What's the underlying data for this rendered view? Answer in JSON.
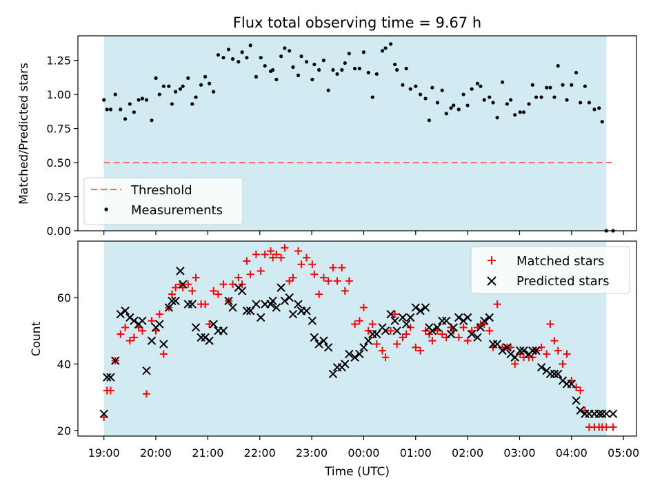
{
  "colors": {
    "band": "#add8e6",
    "threshold": "#ff6b6b",
    "matched": "#ff0000",
    "predicted": "#000000",
    "measurement": "#000000"
  },
  "chart_data": [
    {
      "type": "scatter",
      "title": "Flux total observing time = 9.67 h",
      "xlabel": "",
      "ylabel": "Matched/Predicted stars",
      "xlim": [
        -0.5,
        10.25
      ],
      "ylim": [
        0.0,
        1.43
      ],
      "yticks": [
        0.0,
        0.25,
        0.5,
        0.75,
        1.0
      ],
      "ytick_labels": [
        "0.00",
        "0.25",
        "0.50",
        "0.75",
        "1.00"
      ],
      "yticks_extra": [
        1.25
      ],
      "ytick_labels_extra": [
        "1.25"
      ],
      "observing_band": [
        0.0,
        9.67
      ],
      "threshold": 0.5,
      "threshold_x": [
        0.0,
        9.8
      ],
      "legend": {
        "threshold": "Threshold",
        "measurements": "Measurements",
        "placement": "lower-left"
      },
      "series": [
        {
          "name": "Measurements",
          "x": [
            0.0,
            0.06,
            0.13,
            0.22,
            0.32,
            0.41,
            0.5,
            0.58,
            0.67,
            0.74,
            0.82,
            0.92,
            1.0,
            1.07,
            1.15,
            1.25,
            1.31,
            1.38,
            1.47,
            1.52,
            1.62,
            1.7,
            1.77,
            1.87,
            1.95,
            2.03,
            2.11,
            2.2,
            2.3,
            2.4,
            2.48,
            2.59,
            2.66,
            2.75,
            2.82,
            2.93,
            3.02,
            3.1,
            3.21,
            3.25,
            3.32,
            3.41,
            3.48,
            3.57,
            3.64,
            3.74,
            3.8,
            3.9,
            4.01,
            4.05,
            4.14,
            4.23,
            4.32,
            4.41,
            4.49,
            4.58,
            4.64,
            4.72,
            4.83,
            4.92,
            5.0,
            5.09,
            5.17,
            5.25,
            5.36,
            5.42,
            5.52,
            5.6,
            5.64,
            5.75,
            5.82,
            5.9,
            6.0,
            6.09,
            6.19,
            6.26,
            6.32,
            6.42,
            6.51,
            6.59,
            6.68,
            6.73,
            6.83,
            6.92,
            7.0,
            7.08,
            7.19,
            7.25,
            7.32,
            7.42,
            7.49,
            7.57,
            7.67,
            7.76,
            7.83,
            7.91,
            8.01,
            8.08,
            8.18,
            8.25,
            8.32,
            8.42,
            8.52,
            8.59,
            8.67,
            8.74,
            8.83,
            8.91,
            9.0,
            9.09,
            9.17,
            9.26,
            9.34,
            9.44,
            9.53,
            9.59,
            9.67,
            9.8
          ],
          "y": [
            0.96,
            0.89,
            0.89,
            1.0,
            0.89,
            0.82,
            0.93,
            0.87,
            0.96,
            0.97,
            0.96,
            0.81,
            1.12,
            1.0,
            1.06,
            1.06,
            0.93,
            1.02,
            1.04,
            1.06,
            1.12,
            0.93,
            0.98,
            1.07,
            1.13,
            1.08,
            1.02,
            1.29,
            1.27,
            1.33,
            1.26,
            1.24,
            1.31,
            1.27,
            1.36,
            1.13,
            1.27,
            1.21,
            1.17,
            1.18,
            1.11,
            1.28,
            1.34,
            1.32,
            1.2,
            1.14,
            1.28,
            1.24,
            1.11,
            1.22,
            1.18,
            1.25,
            1.03,
            1.18,
            1.15,
            1.18,
            1.23,
            1.3,
            1.19,
            1.19,
            1.31,
            1.16,
            0.98,
            1.15,
            1.32,
            1.34,
            1.37,
            1.22,
            1.18,
            1.07,
            1.19,
            1.04,
            1.06,
            1.0,
            0.97,
            0.81,
            1.05,
            0.94,
            1.03,
            0.86,
            0.9,
            0.92,
            0.89,
            1.0,
            0.92,
            1.04,
            1.08,
            1.06,
            0.96,
            0.98,
            0.94,
            0.83,
            1.09,
            0.93,
            0.96,
            0.85,
            0.87,
            0.87,
            0.93,
            1.07,
            0.98,
            0.98,
            1.05,
            1.05,
            0.98,
            1.21,
            1.07,
            0.96,
            1.07,
            1.16,
            0.94,
            1.06,
            0.94,
            0.89,
            0.9,
            0.8,
            0.0,
            0.0
          ]
        }
      ]
    },
    {
      "type": "scatter",
      "title": "",
      "xlabel": "Time (UTC)",
      "ylabel": "Count",
      "xlim": [
        -0.5,
        10.25
      ],
      "ylim": [
        18.3,
        77.0
      ],
      "yticks": [
        20,
        40,
        60
      ],
      "ytick_labels": [
        "20",
        "40",
        "60"
      ],
      "xticks": [
        0,
        1,
        2,
        3,
        4,
        5,
        6,
        7,
        8,
        9,
        10
      ],
      "xtick_labels": [
        "19:00",
        "20:00",
        "21:00",
        "22:00",
        "23:00",
        "00:00",
        "01:00",
        "02:00",
        "03:00",
        "04:00",
        "05:00"
      ],
      "observing_band": [
        0.0,
        9.67
      ],
      "legend": {
        "matched": "Matched stars",
        "predicted": "Predicted stars",
        "placement": "top-right"
      },
      "series": [
        {
          "name": "Matched stars",
          "marker": "plus",
          "x": [
            0.0,
            0.06,
            0.13,
            0.22,
            0.32,
            0.41,
            0.5,
            0.58,
            0.67,
            0.74,
            0.82,
            0.92,
            1.0,
            1.07,
            1.15,
            1.25,
            1.31,
            1.38,
            1.47,
            1.52,
            1.62,
            1.7,
            1.77,
            1.87,
            1.95,
            2.03,
            2.11,
            2.2,
            2.3,
            2.4,
            2.48,
            2.59,
            2.66,
            2.75,
            2.82,
            2.93,
            3.02,
            3.1,
            3.21,
            3.25,
            3.32,
            3.41,
            3.48,
            3.57,
            3.64,
            3.74,
            3.8,
            3.9,
            4.01,
            4.05,
            4.14,
            4.23,
            4.32,
            4.41,
            4.49,
            4.58,
            4.64,
            4.72,
            4.83,
            4.92,
            5.0,
            5.09,
            5.17,
            5.25,
            5.36,
            5.42,
            5.52,
            5.6,
            5.64,
            5.75,
            5.82,
            5.9,
            6.0,
            6.09,
            6.19,
            6.26,
            6.32,
            6.42,
            6.51,
            6.59,
            6.68,
            6.73,
            6.83,
            6.92,
            7.0,
            7.08,
            7.19,
            7.25,
            7.32,
            7.42,
            7.49,
            7.57,
            7.67,
            7.76,
            7.83,
            7.91,
            8.01,
            8.08,
            8.18,
            8.25,
            8.32,
            8.42,
            8.52,
            8.59,
            8.67,
            8.74,
            8.83,
            8.91,
            9.0,
            9.09,
            9.17,
            9.26,
            9.34,
            9.44,
            9.53,
            9.59,
            9.67,
            9.8
          ],
          "y": [
            24,
            32,
            32,
            41,
            49,
            51,
            47,
            48,
            51,
            50,
            31,
            53,
            50,
            55,
            43,
            57,
            61,
            63,
            64,
            63,
            64,
            62,
            66,
            58,
            58,
            52,
            62,
            61,
            64,
            59,
            64,
            66,
            64,
            71,
            67,
            73,
            68,
            73,
            74,
            72,
            73,
            72,
            75,
            65,
            66,
            74,
            70,
            72,
            70,
            67,
            61,
            66,
            65,
            69,
            65,
            69,
            62,
            65,
            52,
            53,
            57,
            50,
            52,
            46,
            44,
            42,
            50,
            55,
            46,
            48,
            49,
            51,
            45,
            44,
            50,
            49,
            47,
            50,
            49,
            48,
            51,
            50,
            48,
            51,
            47,
            50,
            51,
            52,
            52,
            50,
            45,
            58,
            45,
            45,
            45,
            40,
            43,
            42,
            42,
            42,
            44,
            45,
            43,
            52,
            47,
            44,
            40,
            43,
            35,
            33,
            32,
            26,
            21,
            21,
            21,
            21,
            21,
            21
          ]
        },
        {
          "name": "Predicted stars",
          "marker": "cross",
          "x": [
            0.0,
            0.06,
            0.13,
            0.22,
            0.32,
            0.41,
            0.5,
            0.58,
            0.67,
            0.74,
            0.82,
            0.92,
            1.0,
            1.07,
            1.15,
            1.25,
            1.31,
            1.38,
            1.47,
            1.52,
            1.62,
            1.7,
            1.77,
            1.87,
            1.95,
            2.03,
            2.11,
            2.2,
            2.3,
            2.4,
            2.48,
            2.59,
            2.66,
            2.75,
            2.82,
            2.93,
            3.02,
            3.1,
            3.21,
            3.25,
            3.32,
            3.41,
            3.48,
            3.57,
            3.64,
            3.74,
            3.8,
            3.9,
            4.01,
            4.05,
            4.14,
            4.23,
            4.32,
            4.41,
            4.49,
            4.58,
            4.64,
            4.72,
            4.83,
            4.92,
            5.0,
            5.09,
            5.17,
            5.25,
            5.36,
            5.42,
            5.52,
            5.6,
            5.64,
            5.75,
            5.82,
            5.9,
            6.0,
            6.09,
            6.19,
            6.26,
            6.32,
            6.42,
            6.51,
            6.59,
            6.68,
            6.73,
            6.83,
            6.92,
            7.0,
            7.08,
            7.19,
            7.25,
            7.32,
            7.42,
            7.49,
            7.57,
            7.67,
            7.76,
            7.83,
            7.91,
            8.01,
            8.08,
            8.18,
            8.25,
            8.32,
            8.42,
            8.52,
            8.59,
            8.67,
            8.74,
            8.83,
            8.91,
            9.0,
            9.09,
            9.17,
            9.26,
            9.34,
            9.44,
            9.53,
            9.59,
            9.67,
            9.8
          ],
          "y": [
            25,
            36,
            36,
            41,
            55,
            56,
            54,
            53,
            52,
            53,
            38,
            47,
            51,
            52,
            46,
            57,
            59,
            59,
            68,
            64,
            58,
            58,
            51,
            48,
            48,
            47,
            52,
            50,
            50,
            59,
            57,
            63,
            62,
            56,
            56,
            58,
            54,
            58,
            58,
            59,
            57,
            63,
            59,
            60,
            55,
            58,
            56,
            56,
            53,
            48,
            46,
            47,
            45,
            37,
            39,
            39,
            40,
            43,
            42,
            43,
            45,
            47,
            49,
            49,
            51,
            50,
            55,
            53,
            50,
            54,
            52,
            54,
            57,
            56,
            57,
            51,
            50,
            51,
            53,
            53,
            49,
            51,
            54,
            53,
            54,
            49,
            48,
            51,
            53,
            54,
            46,
            46,
            44,
            45,
            43,
            42,
            44,
            44,
            43,
            44,
            44,
            39,
            38,
            37,
            37,
            37,
            35,
            34,
            34,
            29,
            26,
            25,
            25,
            25,
            25,
            25,
            25,
            25
          ]
        }
      ]
    }
  ]
}
